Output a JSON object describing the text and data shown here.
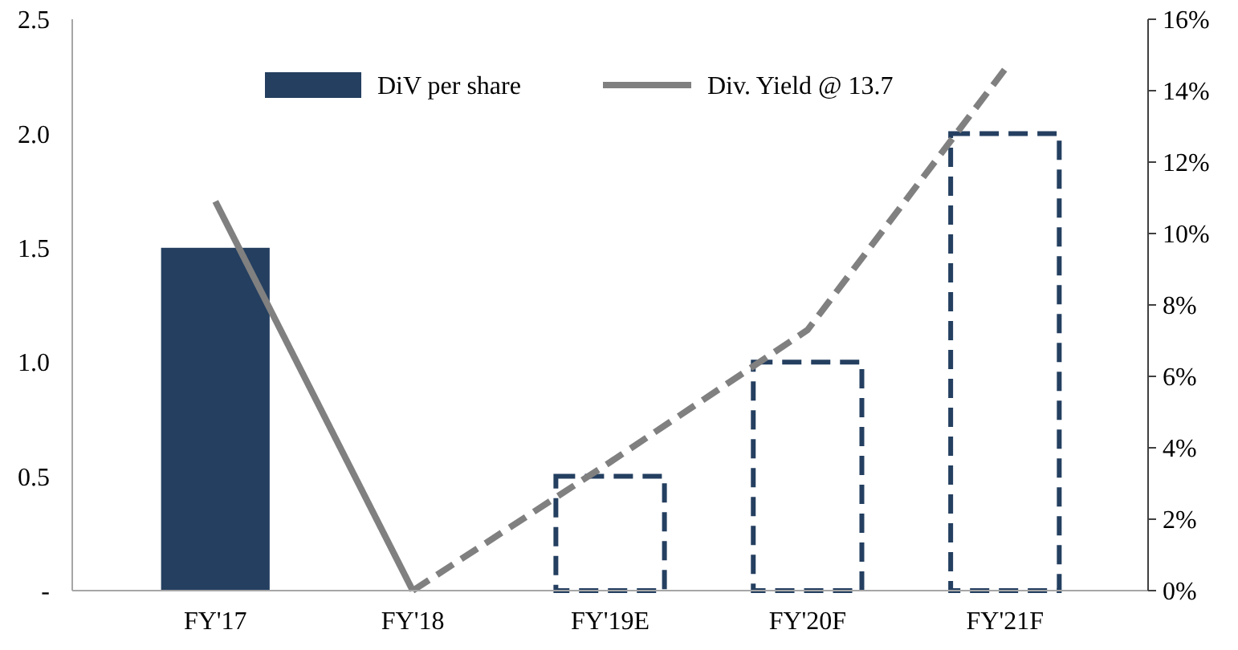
{
  "chart_data": {
    "type": "bar",
    "categories": [
      "FY'17",
      "FY'18",
      "FY'19E",
      "FY'20F",
      "FY'21F"
    ],
    "legend": "top",
    "ylim": [
      0,
      2.5
    ],
    "yticks": [
      {
        "value": 0,
        "label": "-"
      },
      {
        "value": 0.5,
        "label": "0.5"
      },
      {
        "value": 1,
        "label": "1.0"
      },
      {
        "value": 1.5,
        "label": "1.5"
      },
      {
        "value": 2,
        "label": "2.0"
      },
      {
        "value": 2.5,
        "label": "2.5"
      }
    ],
    "y2lim": [
      0,
      16
    ],
    "y2ticks": [
      {
        "value": 0,
        "label": "0%"
      },
      {
        "value": 2,
        "label": "2%"
      },
      {
        "value": 4,
        "label": "4%"
      },
      {
        "value": 6,
        "label": "6%"
      },
      {
        "value": 8,
        "label": "8%"
      },
      {
        "value": 10,
        "label": "10%"
      },
      {
        "value": 12,
        "label": "12%"
      },
      {
        "value": 14,
        "label": "14%"
      },
      {
        "value": 16,
        "label": "16%"
      }
    ],
    "series": [
      {
        "name": "DiV per share",
        "color": "#243f60",
        "values": [
          1.5,
          0,
          null,
          null,
          null
        ]
      },
      {
        "color": "#243f60",
        "line_style": "dashed",
        "values": [
          null,
          null,
          0.5,
          1,
          2
        ]
      },
      {
        "name": "Div. Yield @ 13.7",
        "type": "line",
        "axis": "y2",
        "color": "#808080",
        "line_style": "solid",
        "values": [
          10.9,
          0,
          null,
          null,
          null
        ]
      },
      {
        "type": "line",
        "axis": "y2",
        "color": "#808080",
        "line_style": "dashed",
        "values": [
          null,
          0,
          3.6,
          7.3,
          14.6
        ]
      }
    ]
  }
}
